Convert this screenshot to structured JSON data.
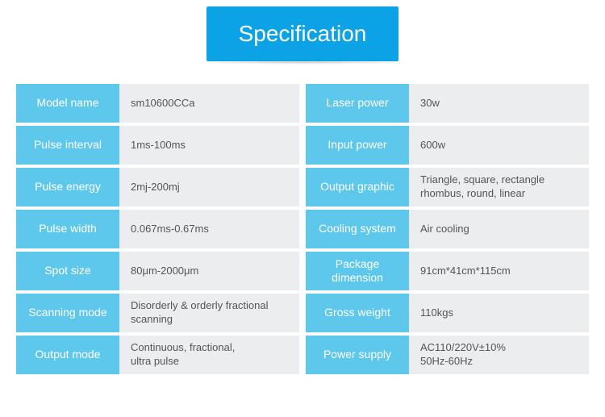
{
  "banner": {
    "title": "Specification",
    "bg_color": "#0ba2e6",
    "text_color": "#ffffff",
    "font_size": 28
  },
  "colors": {
    "label_bg": "#5ec7ec",
    "label_text": "#ffffff",
    "value_bg": "#ecedef",
    "value_text": "#555555"
  },
  "left": [
    {
      "label": "Model name",
      "value": "sm10600CCa"
    },
    {
      "label": "Pulse interval",
      "value": "1ms-100ms"
    },
    {
      "label": "Pulse energy",
      "value": "2mj-200mj"
    },
    {
      "label": "Pulse width",
      "value": "0.067ms-0.67ms"
    },
    {
      "label": "Spot size",
      "value": "80μm-2000μm"
    },
    {
      "label": "Scanning\nmode",
      "value": "Disorderly & orderly fractional scanning"
    },
    {
      "label": "Output mode",
      "value": "Continuous, fractional,\nultra pulse"
    }
  ],
  "right": [
    {
      "label": "Laser power",
      "value": "30w"
    },
    {
      "label": "Input power",
      "value": "600w"
    },
    {
      "label": "Output graphic",
      "value": "Triangle, square, rectangle\nrhombus, round, linear"
    },
    {
      "label": "Cooling system",
      "value": "Air cooling"
    },
    {
      "label": "Package\ndimension",
      "value": "91cm*41cm*115cm"
    },
    {
      "label": "Gross weight",
      "value": "110kgs"
    },
    {
      "label": "Power supply",
      "value": "AC110/220V±10%\n50Hz-60Hz"
    }
  ]
}
